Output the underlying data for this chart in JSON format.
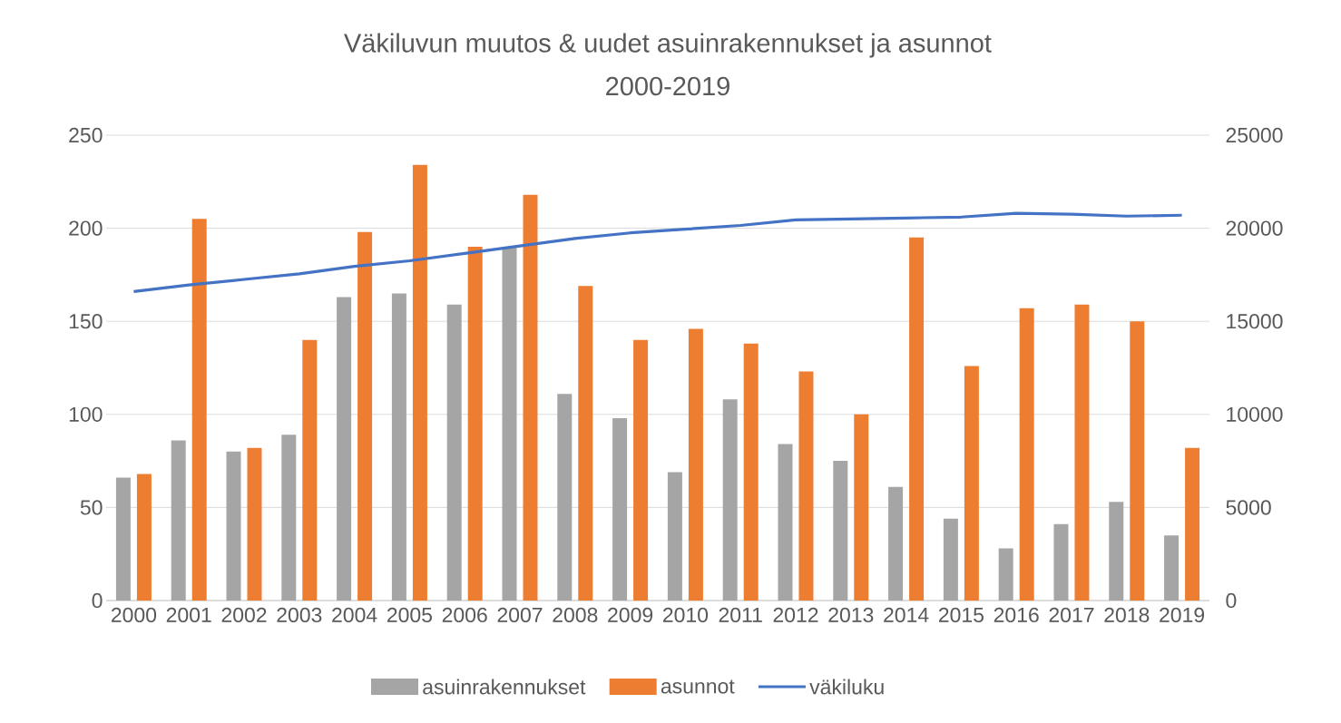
{
  "chart_data": {
    "type": "bar",
    "title": "Väkiluvun muutos & uudet asuinrakennukset ja asunnot",
    "subtitle": "2000-2019",
    "categories": [
      "2000",
      "2001",
      "2002",
      "2003",
      "2004",
      "2005",
      "2006",
      "2007",
      "2008",
      "2009",
      "2010",
      "2011",
      "2012",
      "2013",
      "2014",
      "2015",
      "2016",
      "2017",
      "2018",
      "2019"
    ],
    "series": [
      {
        "name": "asuinrakennukset",
        "color": "#a5a5a5",
        "values": [
          66,
          86,
          80,
          89,
          163,
          165,
          159,
          190,
          111,
          98,
          69,
          108,
          84,
          75,
          61,
          44,
          28,
          41,
          53,
          35
        ]
      },
      {
        "name": "asunnot",
        "color": "#ed7d31",
        "values": [
          68,
          205,
          82,
          140,
          198,
          234,
          190,
          218,
          169,
          140,
          146,
          138,
          123,
          100,
          195,
          126,
          157,
          159,
          150,
          82
        ]
      },
      {
        "name": "väkiluku",
        "type": "line",
        "axis": "y2",
        "color": "#4472c4",
        "marker": "none",
        "values": [
          16600,
          16950,
          17250,
          17550,
          17950,
          18250,
          18650,
          19050,
          19450,
          19750,
          19950,
          20150,
          20450,
          20500,
          20550,
          20600,
          20800,
          20750,
          20650,
          20700
        ]
      }
    ],
    "ylim": [
      0,
      250
    ],
    "yticks": [
      0,
      50,
      100,
      150,
      200,
      250
    ],
    "y2lim": [
      0,
      25000
    ],
    "y2ticks": [
      0,
      5000,
      10000,
      15000,
      20000,
      25000
    ],
    "grid": "y",
    "legend": "bottom"
  }
}
